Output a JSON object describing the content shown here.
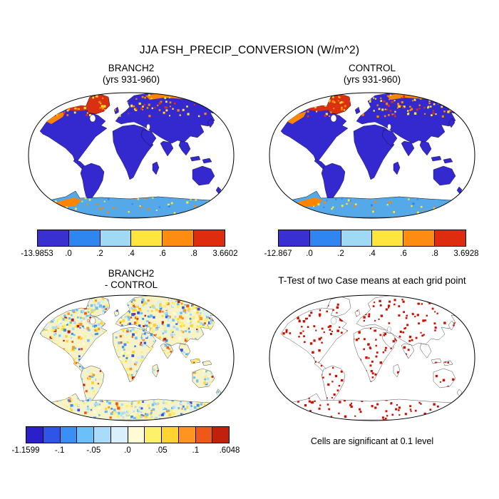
{
  "title": "JJA FSH_PRECIP_CONVERSION (W/m^2)",
  "colors": {
    "background": "#ffffff",
    "text": "#000000",
    "map_frame": "#000000",
    "ocean": "#ffffff"
  },
  "panels": [
    {
      "name": "branch2-mean",
      "title_line1": "BRANCH2",
      "title_line2": "(yrs 931-960)",
      "colorbar": {
        "colors": [
          "#3a2fd0",
          "#2f86f0",
          "#9fd9f4",
          "#ffe53e",
          "#ff8c12",
          "#dd2c0e"
        ],
        "labels": [
          "-13.9853",
          ".0",
          ".2",
          ".4",
          ".6",
          ".8",
          "3.6602"
        ]
      },
      "map": {
        "mode": "mean",
        "seed": 11,
        "land": "#3428cf",
        "antarctica": "#55a9e8",
        "hot": [
          "#d83010",
          "#ff8400",
          "#ffe52e"
        ]
      }
    },
    {
      "name": "control-mean",
      "title_line1": "CONTROL",
      "title_line2": "(yrs 931-960)",
      "colorbar": {
        "colors": [
          "#3a2fd0",
          "#2f86f0",
          "#9fd9f4",
          "#ffe53e",
          "#ff8c12",
          "#dd2c0e"
        ],
        "labels": [
          "-12.867",
          ".0",
          ".2",
          ".4",
          ".6",
          ".8",
          "3.6928"
        ]
      },
      "map": {
        "mode": "mean",
        "seed": 29,
        "land": "#3428cf",
        "antarctica": "#55a9e8",
        "hot": [
          "#d83010",
          "#ff8400",
          "#ffe52e"
        ]
      }
    },
    {
      "name": "difference",
      "title_line1": "BRANCH2",
      "title_line2": "- CONTROL",
      "colorbar": {
        "colors": [
          "#2a1fc8",
          "#2f55e8",
          "#3a8ff5",
          "#6cc0fa",
          "#a8dcf8",
          "#d9f0fc",
          "#fdfcd4",
          "#fdf06a",
          "#ffd430",
          "#ff9420",
          "#f0581a",
          "#c0200c"
        ],
        "labels": [
          "-1.1599",
          "-.1",
          "-.05",
          ".0",
          ".05",
          ".1",
          ".6048"
        ]
      },
      "map": {
        "mode": "diff",
        "seed": 77,
        "land": "#f7f3c6",
        "palette": [
          "#2a1fc8",
          "#2f55e8",
          "#3a8ff5",
          "#6cc0fa",
          "#a8dcf8",
          "#d9f0fc",
          "#fdfcd4",
          "#fdf06a",
          "#ffd430",
          "#ff9420",
          "#f0581a",
          "#c0200c"
        ]
      }
    },
    {
      "name": "t-test",
      "title_line1": "T-Test of two Case means at each grid point",
      "caption": "Cells are significant at 0.1 level",
      "map": {
        "mode": "ttest",
        "seed": 42,
        "land": "#ffffff",
        "dot": "#cc1100"
      }
    }
  ],
  "chart_data": [
    {
      "type": "heatmap",
      "projection": "robinson",
      "title": "BRANCH2",
      "subtitle": "(yrs 931-960)",
      "variable": "FSH_PRECIP_CONVERSION",
      "season": "JJA",
      "units": "W/m^2",
      "min": -13.9853,
      "max": 3.6602,
      "contour_levels": [
        0.0,
        0.2,
        0.4,
        0.6,
        0.8
      ],
      "colorbar_labels": [
        "-13.9853",
        ".0",
        ".2",
        ".4",
        ".6",
        ".8",
        "3.6602"
      ],
      "colorbar_colors": [
        "#3a2fd0",
        "#2f86f0",
        "#9fd9f4",
        "#ffe53e",
        "#ff8c12",
        "#dd2c0e"
      ],
      "legend_position": "bottom"
    },
    {
      "type": "heatmap",
      "projection": "robinson",
      "title": "CONTROL",
      "subtitle": "(yrs 931-960)",
      "variable": "FSH_PRECIP_CONVERSION",
      "season": "JJA",
      "units": "W/m^2",
      "min": -12.867,
      "max": 3.6928,
      "contour_levels": [
        0.0,
        0.2,
        0.4,
        0.6,
        0.8
      ],
      "colorbar_labels": [
        "-12.867",
        ".0",
        ".2",
        ".4",
        ".6",
        ".8",
        "3.6928"
      ],
      "colorbar_colors": [
        "#3a2fd0",
        "#2f86f0",
        "#9fd9f4",
        "#ffe53e",
        "#ff8c12",
        "#dd2c0e"
      ],
      "legend_position": "bottom"
    },
    {
      "type": "heatmap",
      "projection": "robinson",
      "title": "BRANCH2 - CONTROL",
      "variable": "FSH_PRECIP_CONVERSION difference",
      "season": "JJA",
      "units": "W/m^2",
      "min": -1.1599,
      "max": 0.6048,
      "contour_levels": [
        -0.1,
        -0.05,
        0.0,
        0.05,
        0.1
      ],
      "colorbar_labels": [
        "-1.1599",
        "-.1",
        "-.05",
        ".0",
        ".05",
        ".1",
        ".6048"
      ],
      "colorbar_colors": [
        "#2a1fc8",
        "#2f55e8",
        "#3a8ff5",
        "#6cc0fa",
        "#a8dcf8",
        "#d9f0fc",
        "#fdfcd4",
        "#fdf06a",
        "#ffd430",
        "#ff9420",
        "#f0581a",
        "#c0200c"
      ],
      "legend_position": "bottom"
    },
    {
      "type": "scatter",
      "projection": "robinson",
      "title": "T-Test of two Case means at each grid point",
      "annotation": "Cells are significant at 0.1 level",
      "marker_color": "#cc1100"
    }
  ]
}
